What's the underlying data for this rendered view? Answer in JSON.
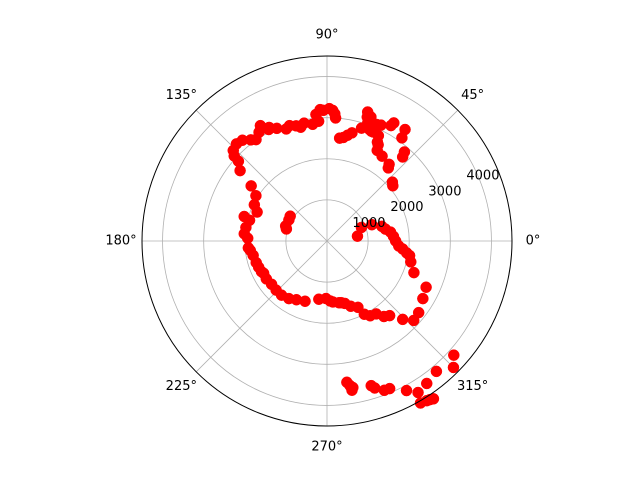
{
  "chart_data": {
    "type": "scatter",
    "projection": "polar",
    "title": "",
    "theta_unit": "degrees",
    "r_max": 4500,
    "angle_ticks": [
      {
        "deg": 0,
        "label": "0°"
      },
      {
        "deg": 45,
        "label": "45°"
      },
      {
        "deg": 90,
        "label": "90°"
      },
      {
        "deg": 135,
        "label": "135°"
      },
      {
        "deg": 180,
        "label": "180°"
      },
      {
        "deg": 225,
        "label": "225°"
      },
      {
        "deg": 270,
        "label": "270°"
      },
      {
        "deg": 315,
        "label": "315°"
      }
    ],
    "radial_ticks": [
      {
        "r": 1000,
        "label": "1000"
      },
      {
        "r": 2000,
        "label": "2000"
      },
      {
        "r": 3000,
        "label": "3000"
      },
      {
        "r": 4000,
        "label": "4000"
      }
    ],
    "radial_label_angle_deg": 22.5,
    "grid": true,
    "marker_color": "#ff0000",
    "series": [
      {
        "points_theta_r": [
          [
            9,
            750
          ],
          [
            86,
            3000
          ],
          [
            86.5,
            3100
          ],
          [
            87.5,
            3180
          ],
          [
            89,
            3220
          ],
          [
            91.6,
            3180
          ],
          [
            93,
            3200
          ],
          [
            95,
            3090
          ],
          [
            94,
            2920
          ],
          [
            97,
            2860
          ],
          [
            101,
            2920
          ],
          [
            103,
            2840
          ],
          [
            105,
            2900
          ],
          [
            108,
            2950
          ],
          [
            110,
            2900
          ],
          [
            114,
            3000
          ],
          [
            117.6,
            3060
          ],
          [
            117,
            3100
          ],
          [
            120,
            3240
          ],
          [
            122,
            3120
          ],
          [
            125,
            3010
          ],
          [
            127,
            3080
          ],
          [
            130,
            3200
          ],
          [
            133,
            3230
          ],
          [
            136,
            3170
          ],
          [
            137.5,
            3060
          ],
          [
            138,
            2900
          ],
          [
            141,
            2720
          ],
          [
            144,
            2280
          ],
          [
            147.5,
            2050
          ],
          [
            153.5,
            1975
          ],
          [
            157.5,
            1840
          ],
          [
            170.5,
            2000
          ],
          [
            163.5,
            2100
          ],
          [
            165,
            1950
          ],
          [
            163.5,
            1030
          ],
          [
            160,
            1070
          ],
          [
            151,
            1060
          ],
          [
            146,
            1080
          ],
          [
            175,
            2020
          ],
          [
            178,
            1930
          ],
          [
            185,
            1920
          ],
          [
            187,
            1880
          ],
          [
            191,
            1830
          ],
          [
            197,
            1800
          ],
          [
            201,
            1780
          ],
          [
            205,
            1760
          ],
          [
            207,
            1730
          ],
          [
            212,
            1740
          ],
          [
            218,
            1710
          ],
          [
            224,
            1720
          ],
          [
            230,
            1720
          ],
          [
            236.5,
            1680
          ],
          [
            242.5,
            1610
          ],
          [
            250,
            1560
          ],
          [
            262,
            1430
          ],
          [
            269,
            1400
          ],
          [
            273,
            1460
          ],
          [
            275.5,
            1490
          ],
          [
            281,
            1530
          ],
          [
            283,
            1540
          ],
          [
            286,
            1580
          ],
          [
            290,
            1690
          ],
          [
            295,
            1780
          ],
          [
            297,
            2000
          ],
          [
            300,
            2100
          ],
          [
            304,
            2140
          ],
          [
            307,
            2300
          ],
          [
            310,
            2370
          ],
          [
            314,
            2650
          ],
          [
            317.5,
            2860
          ],
          [
            322,
            2830
          ],
          [
            329,
            2720
          ],
          [
            335,
            2660
          ],
          [
            340,
            2250
          ],
          [
            346,
            2100
          ],
          [
            350,
            2040
          ],
          [
            351.5,
            1960
          ],
          [
            354,
            1850
          ],
          [
            356,
            1750
          ],
          [
            360,
            1670
          ],
          [
            4,
            1620
          ],
          [
            8,
            1560
          ],
          [
            11.5,
            1450
          ],
          [
            15,
            1380
          ],
          [
            20,
            1160
          ],
          [
            21.5,
            900
          ],
          [
            278,
            3470
          ],
          [
            279,
            3560
          ],
          [
            280,
            3620
          ],
          [
            279.5,
            3680
          ],
          [
            287,
            3680
          ],
          [
            288,
            3760
          ],
          [
            291,
            3890
          ],
          [
            293,
            3900
          ],
          [
            301,
            4300
          ],
          [
            298,
            4120
          ],
          [
            305,
            4230
          ],
          [
            318,
            4150
          ],
          [
            300,
            4550
          ],
          [
            302,
            4580
          ],
          [
            303,
            4600
          ],
          [
            304,
            4630
          ],
          [
            310,
            4140
          ],
          [
            315,
            4350
          ],
          [
            40,
            2090
          ],
          [
            42,
            2140
          ],
          [
            50,
            2320
          ],
          [
            51,
            2400
          ],
          [
            57,
            2460
          ],
          [
            61,
            2520
          ],
          [
            62,
            2650
          ],
          [
            63,
            2700
          ],
          [
            64,
            2850
          ],
          [
            67,
            2880
          ],
          [
            68,
            2880
          ],
          [
            69,
            2900
          ],
          [
            70,
            3000
          ],
          [
            72,
            3170
          ],
          [
            72.5,
            3290
          ],
          [
            70.5,
            3200
          ],
          [
            71,
            3050
          ],
          [
            73,
            2870
          ],
          [
            77,
            2700
          ],
          [
            79,
            2620
          ],
          [
            81,
            2550
          ],
          [
            83,
            2520
          ],
          [
            55,
            3310
          ],
          [
            60.5,
            3300
          ],
          [
            61,
            3210
          ],
          [
            65,
            3110
          ],
          [
            67,
            3080
          ],
          [
            54,
            3100
          ],
          [
            49,
            2870
          ],
          [
            48,
            2750
          ]
        ]
      }
    ]
  }
}
